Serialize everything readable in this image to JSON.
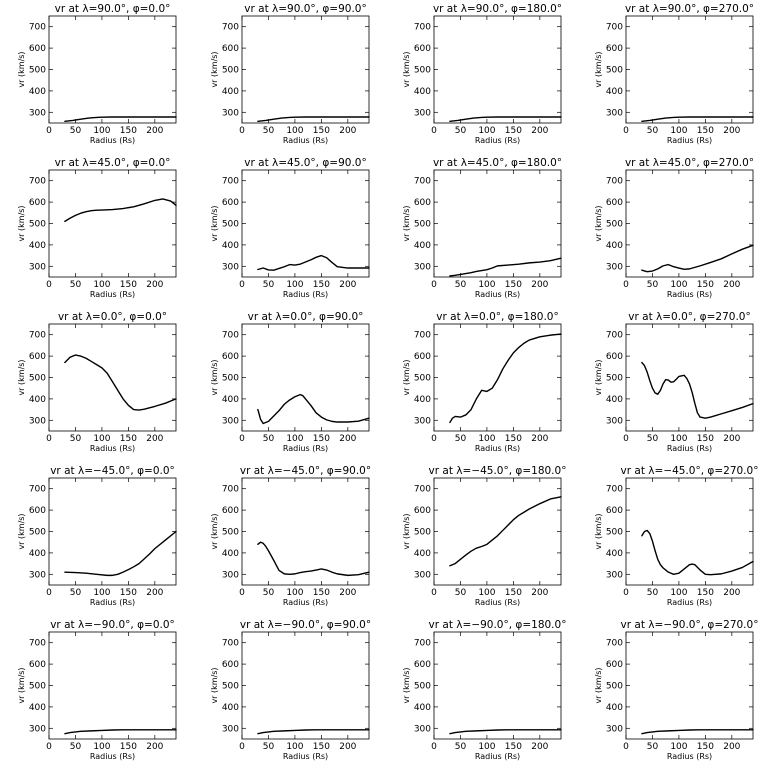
{
  "figure": {
    "xlabel": "Radius (Rs)",
    "ylabel": "vr (km/s)",
    "xlim": [
      0,
      240
    ],
    "ylim": [
      250,
      750
    ],
    "xticks": [
      0,
      50,
      100,
      150,
      200
    ],
    "yticks": [
      300,
      400,
      500,
      600,
      700
    ]
  },
  "chart_data": [
    {
      "type": "line",
      "title": "vr at λ=90.0°, φ=0.0°",
      "x": [
        30,
        45,
        60,
        75,
        90,
        100,
        120,
        140,
        160,
        180,
        200,
        220,
        240
      ],
      "y": [
        258,
        262,
        268,
        273,
        276,
        277,
        278,
        278,
        278,
        278,
        278,
        278,
        278
      ]
    },
    {
      "type": "line",
      "title": "vr at λ=90.0°, φ=90.0°",
      "x": [
        30,
        45,
        60,
        75,
        90,
        100,
        120,
        140,
        160,
        180,
        200,
        220,
        240
      ],
      "y": [
        258,
        262,
        268,
        273,
        276,
        277,
        278,
        278,
        278,
        278,
        278,
        278,
        278
      ]
    },
    {
      "type": "line",
      "title": "vr at λ=90.0°, φ=180.0°",
      "x": [
        30,
        45,
        60,
        75,
        90,
        100,
        120,
        140,
        160,
        180,
        200,
        220,
        240
      ],
      "y": [
        258,
        262,
        268,
        273,
        276,
        277,
        278,
        278,
        278,
        278,
        278,
        278,
        278
      ]
    },
    {
      "type": "line",
      "title": "vr at λ=90.0°, φ=270.0°",
      "x": [
        30,
        45,
        60,
        75,
        90,
        100,
        120,
        140,
        160,
        180,
        200,
        220,
        240
      ],
      "y": [
        258,
        262,
        268,
        273,
        276,
        277,
        278,
        278,
        278,
        278,
        278,
        278,
        278
      ]
    },
    {
      "type": "line",
      "title": "vr at λ=45.0°, φ=0.0°",
      "x": [
        30,
        40,
        50,
        60,
        70,
        80,
        90,
        100,
        120,
        140,
        160,
        180,
        200,
        215,
        230,
        240
      ],
      "y": [
        510,
        525,
        538,
        548,
        555,
        560,
        562,
        563,
        565,
        570,
        578,
        592,
        608,
        615,
        605,
        585
      ]
    },
    {
      "type": "line",
      "title": "vr at λ=45.0°, φ=90.0°",
      "x": [
        30,
        40,
        50,
        60,
        70,
        80,
        90,
        100,
        110,
        120,
        130,
        140,
        150,
        160,
        170,
        180,
        200,
        220,
        240
      ],
      "y": [
        285,
        292,
        283,
        282,
        290,
        298,
        308,
        306,
        310,
        320,
        330,
        342,
        350,
        340,
        318,
        298,
        292,
        292,
        292
      ]
    },
    {
      "type": "line",
      "title": "vr at λ=45.0°, φ=180.0°",
      "x": [
        30,
        40,
        50,
        60,
        70,
        80,
        90,
        100,
        110,
        120,
        140,
        160,
        180,
        200,
        220,
        240
      ],
      "y": [
        255,
        258,
        262,
        266,
        270,
        276,
        280,
        284,
        292,
        302,
        306,
        310,
        316,
        320,
        326,
        338
      ]
    },
    {
      "type": "line",
      "title": "vr at λ=45.0°, φ=270.0°",
      "x": [
        30,
        40,
        50,
        60,
        70,
        80,
        90,
        100,
        110,
        120,
        140,
        160,
        180,
        200,
        220,
        240
      ],
      "y": [
        282,
        275,
        278,
        288,
        302,
        308,
        298,
        292,
        286,
        288,
        302,
        318,
        335,
        358,
        380,
        398
      ]
    },
    {
      "type": "line",
      "title": "vr at λ=0.0°, φ=0.0°",
      "x": [
        30,
        40,
        50,
        60,
        70,
        80,
        90,
        100,
        110,
        120,
        130,
        140,
        150,
        160,
        170,
        180,
        200,
        220,
        240
      ],
      "y": [
        570,
        595,
        605,
        600,
        590,
        575,
        560,
        545,
        520,
        480,
        440,
        400,
        370,
        350,
        348,
        352,
        365,
        380,
        400
      ]
    },
    {
      "type": "line",
      "title": "vr at λ=0.0°, φ=90.0°",
      "x": [
        30,
        35,
        40,
        50,
        60,
        70,
        80,
        90,
        100,
        110,
        115,
        120,
        130,
        140,
        150,
        160,
        170,
        180,
        200,
        220,
        240
      ],
      "y": [
        350,
        305,
        285,
        295,
        320,
        345,
        375,
        395,
        410,
        420,
        415,
        400,
        370,
        335,
        315,
        302,
        295,
        292,
        292,
        296,
        310
      ]
    },
    {
      "type": "line",
      "title": "vr at λ=0.0°, φ=180.0°",
      "x": [
        30,
        35,
        40,
        50,
        60,
        70,
        80,
        90,
        100,
        110,
        120,
        130,
        140,
        150,
        160,
        170,
        180,
        200,
        220,
        240
      ],
      "y": [
        290,
        310,
        318,
        315,
        325,
        350,
        400,
        440,
        435,
        450,
        490,
        540,
        580,
        615,
        640,
        660,
        675,
        690,
        698,
        703
      ]
    },
    {
      "type": "line",
      "title": "vr at λ=0.0°, φ=270.0°",
      "x": [
        30,
        35,
        40,
        45,
        50,
        55,
        60,
        65,
        70,
        75,
        80,
        85,
        90,
        95,
        100,
        110,
        115,
        120,
        125,
        130,
        135,
        140,
        150,
        160,
        180,
        200,
        220,
        240
      ],
      "y": [
        570,
        555,
        525,
        485,
        450,
        428,
        422,
        440,
        470,
        490,
        488,
        478,
        480,
        492,
        505,
        510,
        495,
        470,
        430,
        380,
        335,
        315,
        310,
        315,
        330,
        345,
        360,
        378
      ]
    },
    {
      "type": "line",
      "title": "vr at λ=−45.0°, φ=0.0°",
      "x": [
        30,
        50,
        70,
        90,
        110,
        120,
        130,
        140,
        150,
        160,
        170,
        180,
        190,
        200,
        220,
        240
      ],
      "y": [
        310,
        308,
        305,
        300,
        295,
        295,
        300,
        310,
        322,
        335,
        350,
        372,
        395,
        420,
        460,
        500
      ]
    },
    {
      "type": "line",
      "title": "vr at λ=−45.0°, φ=90.0°",
      "x": [
        30,
        35,
        40,
        45,
        50,
        60,
        70,
        80,
        90,
        100,
        110,
        120,
        130,
        140,
        150,
        160,
        170,
        180,
        200,
        220,
        240
      ],
      "y": [
        440,
        450,
        445,
        430,
        410,
        365,
        318,
        302,
        300,
        302,
        308,
        312,
        315,
        320,
        325,
        320,
        310,
        302,
        295,
        298,
        310
      ]
    },
    {
      "type": "line",
      "title": "vr at λ=−45.0°, φ=180.0°",
      "x": [
        30,
        40,
        50,
        60,
        70,
        80,
        90,
        100,
        110,
        120,
        130,
        140,
        150,
        160,
        170,
        180,
        200,
        220,
        240
      ],
      "y": [
        340,
        350,
        370,
        390,
        408,
        422,
        430,
        440,
        460,
        480,
        505,
        530,
        555,
        575,
        590,
        605,
        630,
        652,
        662
      ]
    },
    {
      "type": "line",
      "title": "vr at λ=−45.0°, φ=270.0°",
      "x": [
        30,
        35,
        40,
        45,
        50,
        55,
        60,
        65,
        70,
        80,
        90,
        100,
        110,
        120,
        125,
        130,
        140,
        150,
        160,
        180,
        200,
        220,
        240
      ],
      "y": [
        480,
        500,
        505,
        490,
        455,
        410,
        370,
        345,
        330,
        310,
        300,
        305,
        325,
        345,
        348,
        345,
        320,
        300,
        298,
        302,
        315,
        332,
        360
      ]
    },
    {
      "type": "line",
      "title": "vr at λ=−90.0°, φ=0.0°",
      "x": [
        30,
        40,
        50,
        60,
        80,
        100,
        120,
        140,
        160,
        180,
        200,
        220,
        240
      ],
      "y": [
        275,
        280,
        283,
        286,
        288,
        290,
        292,
        293,
        293,
        293,
        293,
        293,
        293
      ]
    },
    {
      "type": "line",
      "title": "vr at λ=−90.0°, φ=90.0°",
      "x": [
        30,
        40,
        50,
        60,
        80,
        100,
        120,
        140,
        160,
        180,
        200,
        220,
        240
      ],
      "y": [
        275,
        280,
        283,
        286,
        288,
        290,
        292,
        293,
        293,
        293,
        293,
        293,
        293
      ]
    },
    {
      "type": "line",
      "title": "vr at λ=−90.0°, φ=180.0°",
      "x": [
        30,
        40,
        50,
        60,
        80,
        100,
        120,
        140,
        160,
        180,
        200,
        220,
        240
      ],
      "y": [
        275,
        280,
        283,
        286,
        288,
        290,
        292,
        293,
        293,
        293,
        293,
        293,
        293
      ]
    },
    {
      "type": "line",
      "title": "vr at λ=−90.0°, φ=270.0°",
      "x": [
        30,
        40,
        50,
        60,
        80,
        100,
        120,
        140,
        160,
        180,
        200,
        220,
        240
      ],
      "y": [
        275,
        280,
        283,
        286,
        288,
        290,
        292,
        293,
        293,
        293,
        293,
        293,
        293
      ]
    }
  ]
}
